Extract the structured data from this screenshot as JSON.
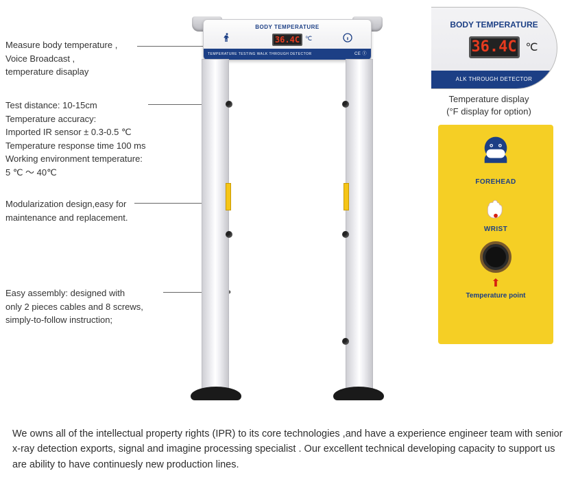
{
  "colors": {
    "brand_blue": "#1c3f85",
    "panel_yellow": "#f5cf25",
    "led_red": "#e63b1f",
    "arrow_red": "#d62010",
    "text": "#333333"
  },
  "annotations": [
    "Measure body temperature ,\nVoice Broadcast ,\ntemperature disaplay",
    "Test distance: 10-15cm\nTemperature accuracy:\nImported IR sensor ± 0.3-0.5 ℃\nTemperature response time 100 ms\nWorking environment temperature:\n5 ℃ ～ 40℃",
    "Modularization design,easy for\nmaintenance and replacement.",
    "Easy assembly: designed with\nonly 2 pieces cables and 8 screws,\nsimply-to-follow instruction;"
  ],
  "gate": {
    "label": "BODY TEMPERATURE",
    "temperature": "36.4C",
    "unit": "℃",
    "stripe_text": "TEMPERATURE TESTING WALK THROUGH DETECTOR",
    "stripe_right": "CE ⓘ"
  },
  "temp_display": {
    "label": "BODY TEMPERATURE",
    "value": "36.4C",
    "unit": "℃",
    "strip": "ALK THROUGH DETECTOR",
    "caption_l1": "Temperature display",
    "caption_l2": "(°F display for option)"
  },
  "panel": {
    "forehead": "FOREHEAD",
    "wrist": "WRIST",
    "point": "Temperature point",
    "arrow": "⬆"
  },
  "footer": "We owns all of the intellectual property rights (IPR) to its core technologies ,and have a experience engineer team with senior x-ray detection exports, signal and imagine processing specialist . Our excellent technical developing capacity to support us are ability to have continuesly new production lines."
}
